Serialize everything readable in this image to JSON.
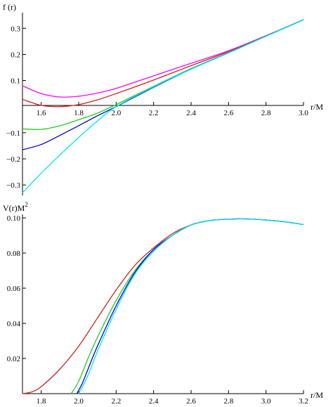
{
  "chart_data": [
    {
      "type": "line",
      "ylabel": "f (r)",
      "xlabel": "r/M",
      "xlim": [
        1.5,
        3.0
      ],
      "ylim": [
        -0.34,
        0.36
      ],
      "xticks": [
        "1.6",
        "1.8",
        "2.0",
        "2.2",
        "2.4",
        "2.6",
        "2.8",
        "3.0"
      ],
      "yticks": [
        "−0.3",
        "−0.2",
        "−0.1",
        "0.1",
        "0.2",
        "0.3"
      ],
      "grid": false,
      "legend": "none",
      "series": [
        {
          "color": "#ff00ff",
          "x": [
            1.5,
            1.6,
            1.7,
            1.8,
            1.9,
            2.0,
            2.2,
            2.4,
            2.6,
            2.8,
            3.0
          ],
          "y": [
            0.08,
            0.05,
            0.037,
            0.04,
            0.052,
            0.07,
            0.118,
            0.166,
            0.214,
            0.272,
            0.333
          ]
        },
        {
          "color": "#cc2222",
          "x": [
            1.5,
            1.6,
            1.7,
            1.8,
            1.9,
            2.0,
            2.2,
            2.4,
            2.6,
            2.8,
            3.0
          ],
          "y": [
            0.028,
            0.005,
            0.0,
            0.008,
            0.026,
            0.05,
            0.102,
            0.157,
            0.211,
            0.271,
            0.333
          ]
        },
        {
          "color": "#22cc22",
          "x": [
            1.5,
            1.6,
            1.7,
            1.8,
            1.9,
            2.0,
            2.2,
            2.4,
            2.6,
            2.8,
            3.0
          ],
          "y": [
            -0.085,
            -0.087,
            -0.073,
            -0.05,
            -0.025,
            0.008,
            0.078,
            0.146,
            0.207,
            0.27,
            0.333
          ]
        },
        {
          "color": "#0000cc",
          "x": [
            1.5,
            1.6,
            1.7,
            1.8,
            1.9,
            2.0,
            2.2,
            2.4,
            2.6,
            2.8,
            3.0
          ],
          "y": [
            -0.165,
            -0.145,
            -0.11,
            -0.073,
            -0.035,
            0.0,
            0.074,
            0.144,
            0.206,
            0.27,
            0.333
          ]
        },
        {
          "color": "#00e5ee",
          "x": [
            1.5,
            1.6,
            1.7,
            1.8,
            1.9,
            2.0,
            2.2,
            2.4,
            2.6,
            2.8,
            3.0
          ],
          "y": [
            -0.33,
            -0.255,
            -0.185,
            -0.118,
            -0.055,
            0.0,
            0.076,
            0.144,
            0.206,
            0.27,
            0.333
          ]
        }
      ]
    },
    {
      "type": "line",
      "ylabel": "V(r)M",
      "ylabel_sup": "2",
      "xlabel": "r/M",
      "xlim": [
        1.7,
        3.2
      ],
      "ylim": [
        0.0,
        0.102
      ],
      "xticks": [
        "1.8",
        "2.0",
        "2.2",
        "2.4",
        "2.6",
        "2.8",
        "3.0",
        "3.2"
      ],
      "yticks": [
        "0.02",
        "0.04",
        "0.06",
        "0.08",
        "0.10"
      ],
      "grid": false,
      "legend": "none",
      "series": [
        {
          "color": "#cc2222",
          "x": [
            1.7,
            1.75,
            1.8,
            1.9,
            2.0,
            2.1,
            2.2,
            2.3,
            2.4,
            2.5,
            2.6,
            2.7,
            2.8,
            2.9,
            3.0,
            3.1,
            3.2
          ],
          "y": [
            0.0,
            0.001,
            0.004,
            0.014,
            0.027,
            0.043,
            0.059,
            0.073,
            0.083,
            0.091,
            0.096,
            0.0985,
            0.0993,
            0.0994,
            0.0988,
            0.0978,
            0.0962
          ]
        },
        {
          "color": "#22cc22",
          "x": [
            1.96,
            2.0,
            2.05,
            2.1,
            2.2,
            2.3,
            2.4,
            2.5,
            2.6,
            2.7,
            2.8,
            2.9,
            3.0,
            3.1,
            3.2
          ],
          "y": [
            0.0,
            0.007,
            0.02,
            0.032,
            0.053,
            0.07,
            0.082,
            0.09,
            0.096,
            0.0985,
            0.0993,
            0.0994,
            0.0988,
            0.0978,
            0.0962
          ]
        },
        {
          "color": "#0000cc",
          "x": [
            1.99,
            2.02,
            2.05,
            2.1,
            2.2,
            2.3,
            2.4,
            2.5,
            2.6,
            2.7,
            2.8,
            2.9,
            3.0,
            3.1,
            3.2
          ],
          "y": [
            0.0,
            0.006,
            0.014,
            0.027,
            0.05,
            0.069,
            0.082,
            0.09,
            0.096,
            0.0985,
            0.0993,
            0.0994,
            0.0988,
            0.0978,
            0.0962
          ]
        },
        {
          "color": "#00e5ee",
          "x": [
            2.0,
            2.03,
            2.06,
            2.1,
            2.2,
            2.3,
            2.4,
            2.5,
            2.6,
            2.7,
            2.8,
            2.9,
            3.0,
            3.1,
            3.2
          ],
          "y": [
            0.0,
            0.006,
            0.013,
            0.024,
            0.048,
            0.068,
            0.081,
            0.09,
            0.096,
            0.0985,
            0.0993,
            0.0994,
            0.0988,
            0.0978,
            0.0962
          ]
        }
      ]
    }
  ]
}
